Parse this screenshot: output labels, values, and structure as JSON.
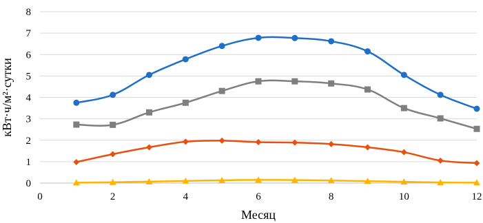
{
  "chart_data": {
    "type": "line",
    "xlabel": "Месяц",
    "ylabel": "кВт·ч/м²·сутки",
    "xlim": [
      0,
      12
    ],
    "ylim": [
      0,
      8
    ],
    "x_ticks": [
      0,
      2,
      4,
      6,
      8,
      10,
      12
    ],
    "y_ticks": [
      0,
      1,
      2,
      3,
      4,
      5,
      6,
      7,
      8
    ],
    "grid": "horizontal",
    "legend": "none",
    "x": [
      1,
      2,
      3,
      4,
      5,
      6,
      7,
      8,
      9,
      10,
      11,
      12
    ],
    "series": [
      {
        "color": "#1f6fc9",
        "marker": "circle",
        "values": [
          3.75,
          4.12,
          5.05,
          5.78,
          6.4,
          6.78,
          6.77,
          6.62,
          6.15,
          5.05,
          4.12,
          3.47
        ]
      },
      {
        "color": "#7f7f7f",
        "marker": "square",
        "values": [
          2.73,
          2.72,
          3.3,
          3.75,
          4.3,
          4.75,
          4.75,
          4.65,
          4.37,
          3.5,
          3.02,
          2.53
        ]
      },
      {
        "color": "#e8500e",
        "marker": "diamond",
        "values": [
          0.98,
          1.35,
          1.67,
          1.93,
          1.98,
          1.91,
          1.89,
          1.82,
          1.67,
          1.44,
          1.05,
          0.93
        ]
      },
      {
        "color": "#ffb400",
        "marker": "triangle",
        "values": [
          0.02,
          0.04,
          0.07,
          0.1,
          0.13,
          0.15,
          0.14,
          0.12,
          0.09,
          0.06,
          0.03,
          0.02
        ]
      }
    ]
  }
}
